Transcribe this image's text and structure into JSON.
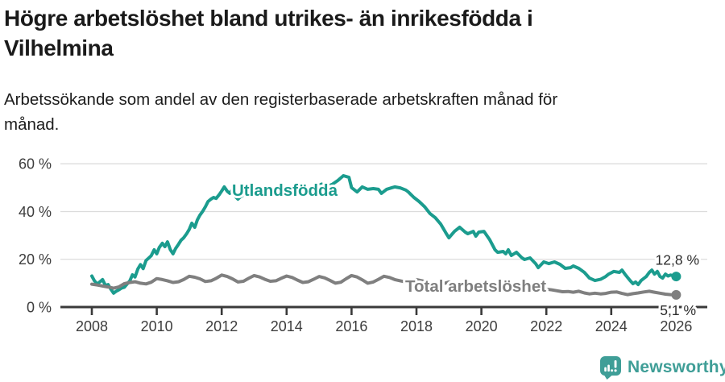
{
  "header": {
    "title_line1": "Högre arbetslöshet bland utrikes- än inrikesfödda i",
    "title_line2": "Vilhelmina",
    "subtitle_line1": "Arbetssökande som andel av den registerbaserade arbetskraften månad för",
    "subtitle_line2": "månad."
  },
  "chart_data": {
    "type": "line",
    "title": "Högre arbetslöshet bland utrikes- än inrikesfödda i Vilhelmina",
    "subtitle": "Arbetssökande som andel av den registerbaserade arbetskraften månad för månad.",
    "grid": "horizontal",
    "colors": {
      "gridline": "#dcdcdc",
      "axis": "#3a3a3a",
      "tick_text": "#3d3d3d",
      "end_label_text": "#2d2d2d"
    },
    "x_axis": {
      "ticks": [
        2008,
        2010,
        2012,
        2014,
        2016,
        2018,
        2020,
        2022,
        2024,
        2026
      ],
      "tick_labels": [
        "2008",
        "2010",
        "2012",
        "2014",
        "2016",
        "2018",
        "2020",
        "2022",
        "2024",
        "2026"
      ],
      "range": [
        2007.05,
        2026.95
      ]
    },
    "y_axis": {
      "unit": "%",
      "ticks": [
        0,
        20,
        40,
        60
      ],
      "tick_labels": [
        "0 %",
        "20 %",
        "40 %",
        "60 %"
      ],
      "range": [
        0,
        63
      ]
    },
    "series": [
      {
        "name": "Utlandsfödda",
        "color": "#1b9c8e",
        "end_label": "12,8 %",
        "end_value": 12.8,
        "points": [
          [
            2008.0,
            13
          ],
          [
            2008.08,
            11
          ],
          [
            2008.17,
            9.6
          ],
          [
            2008.25,
            10.6
          ],
          [
            2008.33,
            11.5
          ],
          [
            2008.42,
            9
          ],
          [
            2008.5,
            9.4
          ],
          [
            2008.58,
            7.6
          ],
          [
            2008.67,
            5.8
          ],
          [
            2008.75,
            6.6
          ],
          [
            2008.83,
            7.2
          ],
          [
            2008.92,
            8
          ],
          [
            2009.0,
            8.3
          ],
          [
            2009.17,
            11
          ],
          [
            2009.25,
            13.5
          ],
          [
            2009.33,
            12.6
          ],
          [
            2009.42,
            16
          ],
          [
            2009.5,
            17.8
          ],
          [
            2009.58,
            16.1
          ],
          [
            2009.67,
            19.5
          ],
          [
            2009.75,
            20.5
          ],
          [
            2009.83,
            21.5
          ],
          [
            2009.92,
            24
          ],
          [
            2010.0,
            22.3
          ],
          [
            2010.08,
            25
          ],
          [
            2010.17,
            26.7
          ],
          [
            2010.25,
            25.3
          ],
          [
            2010.33,
            27.3
          ],
          [
            2010.42,
            24
          ],
          [
            2010.5,
            22.3
          ],
          [
            2010.58,
            24.5
          ],
          [
            2010.67,
            26.3
          ],
          [
            2010.75,
            28
          ],
          [
            2010.83,
            29
          ],
          [
            2010.92,
            30.7
          ],
          [
            2011.0,
            32.5
          ],
          [
            2011.08,
            35.1
          ],
          [
            2011.17,
            33.4
          ],
          [
            2011.25,
            36.5
          ],
          [
            2011.33,
            38.5
          ],
          [
            2011.42,
            40.2
          ],
          [
            2011.5,
            42
          ],
          [
            2011.58,
            44.2
          ],
          [
            2011.67,
            45.2
          ],
          [
            2011.75,
            45.9
          ],
          [
            2011.83,
            45.5
          ],
          [
            2011.92,
            47
          ],
          [
            2012.0,
            48.6
          ],
          [
            2012.08,
            50.3
          ],
          [
            2012.17,
            48.5
          ],
          [
            2012.25,
            47.6
          ],
          [
            2012.33,
            49.3
          ],
          [
            2012.42,
            46.3
          ],
          [
            2012.5,
            45.2
          ],
          [
            2012.58,
            46.2
          ],
          [
            2012.75,
            47.5
          ],
          [
            2012.92,
            48.5
          ],
          [
            2013.08,
            49.5
          ],
          [
            2013.25,
            48
          ],
          [
            2013.42,
            47
          ],
          [
            2013.58,
            48.5
          ],
          [
            2013.75,
            49.5
          ],
          [
            2013.92,
            50.5
          ],
          [
            2014.08,
            49
          ],
          [
            2014.25,
            48
          ],
          [
            2014.42,
            47
          ],
          [
            2014.58,
            48
          ],
          [
            2014.75,
            49.5
          ],
          [
            2014.92,
            50.5
          ],
          [
            2015.08,
            51.5
          ],
          [
            2015.25,
            50.5
          ],
          [
            2015.42,
            51.5
          ],
          [
            2015.58,
            53
          ],
          [
            2015.75,
            55
          ],
          [
            2015.92,
            54.3
          ],
          [
            2016.0,
            50
          ],
          [
            2016.17,
            48.2
          ],
          [
            2016.33,
            50.3
          ],
          [
            2016.5,
            49.3
          ],
          [
            2016.67,
            49.6
          ],
          [
            2016.83,
            49.3
          ],
          [
            2016.92,
            47.6
          ],
          [
            2017.08,
            49.3
          ],
          [
            2017.25,
            50
          ],
          [
            2017.33,
            50.3
          ],
          [
            2017.5,
            49.9
          ],
          [
            2017.67,
            49
          ],
          [
            2017.75,
            48.2
          ],
          [
            2017.92,
            45.9
          ],
          [
            2018.08,
            44.2
          ],
          [
            2018.25,
            42
          ],
          [
            2018.42,
            39.1
          ],
          [
            2018.58,
            37.4
          ],
          [
            2018.75,
            34.7
          ],
          [
            2018.92,
            30.7
          ],
          [
            2019.0,
            29
          ],
          [
            2019.17,
            31.7
          ],
          [
            2019.33,
            33.4
          ],
          [
            2019.5,
            31.4
          ],
          [
            2019.58,
            30.7
          ],
          [
            2019.75,
            31.7
          ],
          [
            2019.83,
            29.7
          ],
          [
            2019.92,
            31.4
          ],
          [
            2020.08,
            31.7
          ],
          [
            2020.25,
            28.3
          ],
          [
            2020.42,
            24
          ],
          [
            2020.5,
            22.9
          ],
          [
            2020.67,
            23.3
          ],
          [
            2020.75,
            22.3
          ],
          [
            2020.83,
            24
          ],
          [
            2020.92,
            21.6
          ],
          [
            2021.08,
            22.9
          ],
          [
            2021.25,
            20.6
          ],
          [
            2021.33,
            19.9
          ],
          [
            2021.5,
            20.6
          ],
          [
            2021.67,
            18.2
          ],
          [
            2021.75,
            16.5
          ],
          [
            2021.92,
            18.9
          ],
          [
            2022.08,
            18.2
          ],
          [
            2022.25,
            18.9
          ],
          [
            2022.42,
            17.9
          ],
          [
            2022.58,
            16.2
          ],
          [
            2022.75,
            16.5
          ],
          [
            2022.83,
            17.2
          ],
          [
            2023.0,
            16.2
          ],
          [
            2023.17,
            14.5
          ],
          [
            2023.33,
            12.1
          ],
          [
            2023.5,
            11.1
          ],
          [
            2023.67,
            11.6
          ],
          [
            2023.83,
            12.8
          ],
          [
            2023.92,
            13.8
          ],
          [
            2024.08,
            14.9
          ],
          [
            2024.25,
            14.5
          ],
          [
            2024.33,
            15.5
          ],
          [
            2024.42,
            13.8
          ],
          [
            2024.58,
            11.1
          ],
          [
            2024.67,
            9.8
          ],
          [
            2024.75,
            10.5
          ],
          [
            2024.83,
            9.4
          ],
          [
            2024.92,
            11.1
          ],
          [
            2025.08,
            12.8
          ],
          [
            2025.17,
            14.5
          ],
          [
            2025.25,
            15.5
          ],
          [
            2025.33,
            13.8
          ],
          [
            2025.42,
            14.9
          ],
          [
            2025.5,
            12.8
          ],
          [
            2025.58,
            12.1
          ],
          [
            2025.67,
            13.8
          ],
          [
            2025.75,
            13
          ],
          [
            2025.83,
            13.4
          ],
          [
            2026.0,
            12.8
          ]
        ]
      },
      {
        "name": "Total arbetslöshet",
        "color": "#7f7f7f",
        "end_label": "5,1 %",
        "end_value": 5.1,
        "points": [
          [
            2008.0,
            9.6
          ],
          [
            2008.17,
            9.2
          ],
          [
            2008.33,
            8.8
          ],
          [
            2008.5,
            8.4
          ],
          [
            2008.67,
            7.9
          ],
          [
            2008.83,
            8.4
          ],
          [
            2009.0,
            9.8
          ],
          [
            2009.17,
            10.3
          ],
          [
            2009.33,
            10.6
          ],
          [
            2009.5,
            10
          ],
          [
            2009.67,
            9.7
          ],
          [
            2009.83,
            10.4
          ],
          [
            2010.0,
            11.9
          ],
          [
            2010.17,
            11.5
          ],
          [
            2010.33,
            11
          ],
          [
            2010.5,
            10.3
          ],
          [
            2010.67,
            10.6
          ],
          [
            2010.83,
            11.5
          ],
          [
            2011.0,
            12.9
          ],
          [
            2011.17,
            12.5
          ],
          [
            2011.33,
            11.8
          ],
          [
            2011.5,
            10.7
          ],
          [
            2011.67,
            11
          ],
          [
            2011.83,
            12
          ],
          [
            2012.0,
            13.4
          ],
          [
            2012.17,
            12.8
          ],
          [
            2012.33,
            11.8
          ],
          [
            2012.5,
            10.5
          ],
          [
            2012.67,
            10.8
          ],
          [
            2012.83,
            12
          ],
          [
            2013.0,
            13.2
          ],
          [
            2013.17,
            12.6
          ],
          [
            2013.33,
            11.6
          ],
          [
            2013.5,
            10.8
          ],
          [
            2013.67,
            11
          ],
          [
            2013.83,
            12
          ],
          [
            2014.0,
            13
          ],
          [
            2014.17,
            12.4
          ],
          [
            2014.33,
            11.3
          ],
          [
            2014.5,
            10.3
          ],
          [
            2014.67,
            10.6
          ],
          [
            2014.83,
            11.6
          ],
          [
            2015.0,
            12.8
          ],
          [
            2015.17,
            12.2
          ],
          [
            2015.33,
            11.2
          ],
          [
            2015.5,
            10
          ],
          [
            2015.67,
            10.4
          ],
          [
            2015.83,
            11.8
          ],
          [
            2016.0,
            13.2
          ],
          [
            2016.17,
            12.6
          ],
          [
            2016.33,
            11.4
          ],
          [
            2016.5,
            10
          ],
          [
            2016.67,
            10.5
          ],
          [
            2016.83,
            11.6
          ],
          [
            2017.0,
            12.9
          ],
          [
            2017.17,
            12.4
          ],
          [
            2017.33,
            11.5
          ],
          [
            2017.5,
            11
          ],
          [
            2017.67,
            10.5
          ],
          [
            2017.83,
            10.8
          ],
          [
            2018.0,
            11.5
          ],
          [
            2018.17,
            11
          ],
          [
            2018.33,
            10.2
          ],
          [
            2018.5,
            9.5
          ],
          [
            2018.67,
            9.2
          ],
          [
            2018.83,
            9.8
          ],
          [
            2019.0,
            10.5
          ],
          [
            2019.17,
            10
          ],
          [
            2019.33,
            9.3
          ],
          [
            2019.5,
            8.8
          ],
          [
            2019.67,
            8.6
          ],
          [
            2019.83,
            9.2
          ],
          [
            2020.0,
            10
          ],
          [
            2020.17,
            10.3
          ],
          [
            2020.33,
            10
          ],
          [
            2020.5,
            9.5
          ],
          [
            2020.67,
            9
          ],
          [
            2020.83,
            8.8
          ],
          [
            2021.0,
            9.2
          ],
          [
            2021.17,
            8.8
          ],
          [
            2021.33,
            8.2
          ],
          [
            2021.5,
            7.8
          ],
          [
            2021.67,
            7.4
          ],
          [
            2021.83,
            7.2
          ],
          [
            2022.0,
            7.5
          ],
          [
            2022.17,
            7.2
          ],
          [
            2022.33,
            6.8
          ],
          [
            2022.5,
            6.4
          ],
          [
            2022.67,
            6.5
          ],
          [
            2022.83,
            6.2
          ],
          [
            2023.0,
            6.6
          ],
          [
            2023.17,
            5.9
          ],
          [
            2023.33,
            5.5
          ],
          [
            2023.5,
            5.8
          ],
          [
            2023.67,
            5.5
          ],
          [
            2023.83,
            5.7
          ],
          [
            2024.0,
            6.2
          ],
          [
            2024.17,
            6.3
          ],
          [
            2024.33,
            5.7
          ],
          [
            2024.5,
            5.2
          ],
          [
            2024.67,
            5.6
          ],
          [
            2024.83,
            5.9
          ],
          [
            2025.0,
            6.3
          ],
          [
            2025.17,
            6.6
          ],
          [
            2025.33,
            6.2
          ],
          [
            2025.5,
            5.8
          ],
          [
            2025.67,
            5.4
          ],
          [
            2025.83,
            5.2
          ],
          [
            2026.0,
            5.1
          ]
        ]
      }
    ]
  },
  "branding": {
    "logo_text": "Newsworthy",
    "logo_color": "#3f9e97",
    "icon": "newsworthy-speech-bubble-bar-chart-icon"
  }
}
